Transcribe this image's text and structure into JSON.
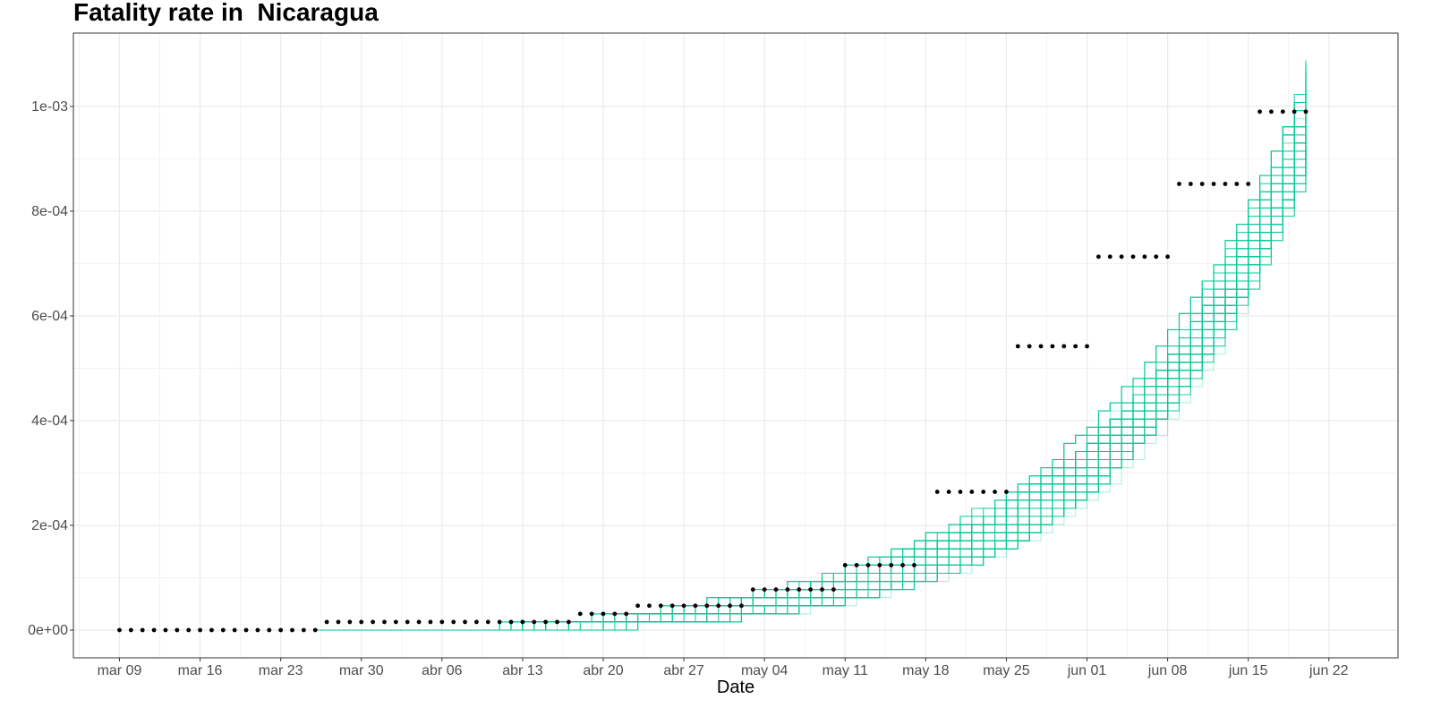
{
  "chart_data": {
    "type": "line",
    "title": "Fatality rate in  Nicaragua",
    "xlabel": "Date",
    "ylabel": "",
    "x_axis": {
      "kind": "date",
      "range": [
        "2020-03-05",
        "2020-06-28"
      ],
      "ticks": [
        {
          "date": "2020-03-09",
          "label": "mar 09"
        },
        {
          "date": "2020-03-16",
          "label": "mar 16"
        },
        {
          "date": "2020-03-23",
          "label": "mar 23"
        },
        {
          "date": "2020-03-30",
          "label": "mar 30"
        },
        {
          "date": "2020-04-06",
          "label": "abr 06"
        },
        {
          "date": "2020-04-13",
          "label": "abr 13"
        },
        {
          "date": "2020-04-20",
          "label": "abr 20"
        },
        {
          "date": "2020-04-27",
          "label": "abr 27"
        },
        {
          "date": "2020-05-04",
          "label": "may 04"
        },
        {
          "date": "2020-05-11",
          "label": "may 11"
        },
        {
          "date": "2020-05-18",
          "label": "may 18"
        },
        {
          "date": "2020-05-25",
          "label": "may 25"
        },
        {
          "date": "2020-06-01",
          "label": "jun 01"
        },
        {
          "date": "2020-06-08",
          "label": "jun 08"
        },
        {
          "date": "2020-06-15",
          "label": "jun 15"
        },
        {
          "date": "2020-06-22",
          "label": "jun 22"
        }
      ]
    },
    "y_axis": {
      "range": [
        -5.3e-05,
        0.00114
      ],
      "ticks": [
        {
          "value": 0,
          "label": "0e+00"
        },
        {
          "value": 0.0002,
          "label": "2e-04"
        },
        {
          "value": 0.0004,
          "label": "4e-04"
        },
        {
          "value": 0.0006,
          "label": "6e-04"
        },
        {
          "value": 0.0008,
          "label": "8e-04"
        },
        {
          "value": 0.001,
          "label": "1e-03"
        }
      ]
    },
    "grid": true,
    "observed": {
      "color": "#000000",
      "segments": [
        {
          "from": "2020-03-09",
          "to": "2020-03-26",
          "value": 0
        },
        {
          "from": "2020-03-27",
          "to": "2020-04-17",
          "value": 1.55e-05
        },
        {
          "from": "2020-04-18",
          "to": "2020-04-22",
          "value": 3.1e-05
        },
        {
          "from": "2020-04-23",
          "to": "2020-05-02",
          "value": 4.65e-05
        },
        {
          "from": "2020-05-03",
          "to": "2020-05-10",
          "value": 7.75e-05
        },
        {
          "from": "2020-05-11",
          "to": "2020-05-17",
          "value": 0.000124
        },
        {
          "from": "2020-05-19",
          "to": "2020-05-25",
          "value": 0.000264
        },
        {
          "from": "2020-05-26",
          "to": "2020-06-01",
          "value": 0.000542
        },
        {
          "from": "2020-06-02",
          "to": "2020-06-08",
          "value": 0.000713
        },
        {
          "from": "2020-06-09",
          "to": "2020-06-15",
          "value": 0.000852
        },
        {
          "from": "2020-06-16",
          "to": "2020-06-20",
          "value": 0.00099
        }
      ]
    },
    "simulations": {
      "color": "#00c896",
      "count": 40,
      "start": "2020-03-26",
      "end": "2020-06-20",
      "end_value_range": [
        0.00089,
        0.00109
      ]
    }
  }
}
